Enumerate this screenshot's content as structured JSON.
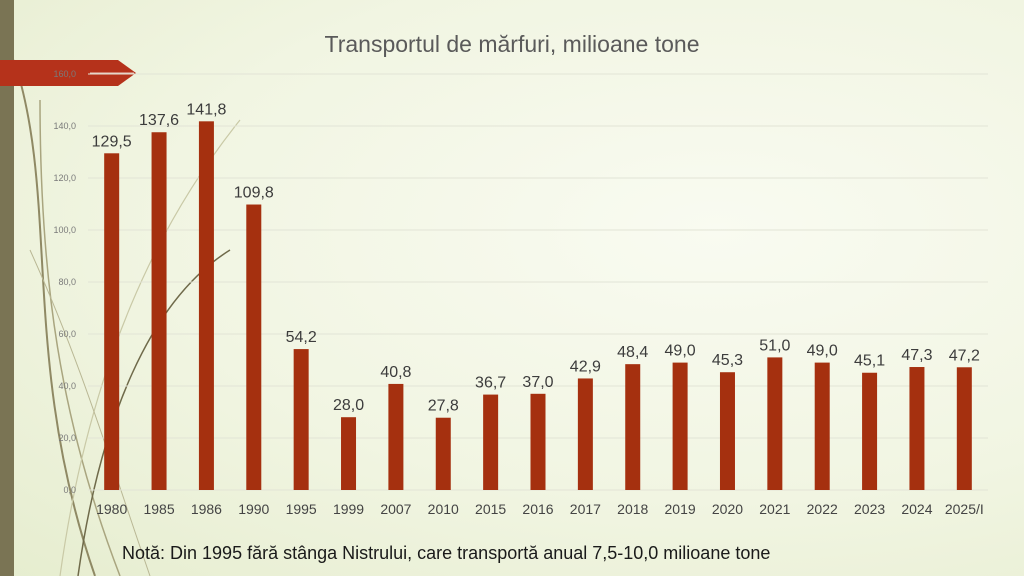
{
  "chart_data": {
    "type": "bar",
    "title": "Transportul de mărfuri, milioane tone",
    "categories": [
      "1980",
      "1985",
      "1986",
      "1990",
      "1995",
      "1999",
      "2007",
      "2010",
      "2015",
      "2016",
      "2017",
      "2018",
      "2019",
      "2020",
      "2021",
      "2022",
      "2023",
      "2024",
      "2025/I"
    ],
    "values": [
      129.5,
      137.6,
      141.8,
      109.8,
      54.2,
      28.0,
      40.8,
      27.8,
      36.7,
      37.0,
      42.9,
      48.4,
      49.0,
      45.3,
      51.0,
      49.0,
      45.1,
      47.3,
      47.2
    ],
    "data_labels": [
      "129,5",
      "137,6",
      "141,8",
      "109,8",
      "54,2",
      "28,0",
      "40,8",
      "27,8",
      "36,7",
      "37,0",
      "42,9",
      "48,4",
      "49,0",
      "45,3",
      "51,0",
      "49,0",
      "45,1",
      "47,3",
      "47,2"
    ],
    "y_ticks": [
      0,
      20,
      40,
      60,
      80,
      100,
      120,
      140,
      160
    ],
    "y_tick_labels": [
      "0,0",
      "20,0",
      "40,0",
      "60,0",
      "80,0",
      "100,0",
      "120,0",
      "140,0",
      "160,0"
    ],
    "ylim": [
      0,
      160
    ],
    "xlabel": "",
    "ylabel": "",
    "grid": true,
    "legend": "none",
    "bar_color": "#a5300f",
    "grid_color": "#e2e4d6"
  },
  "footnote": "Notă: Din 1995 fără stânga Nistrului, care transportă anual 7,5-10,0 milioane tone",
  "theme": {
    "accent_bar": "#7a7454",
    "arrow_color": "#b5321b"
  }
}
